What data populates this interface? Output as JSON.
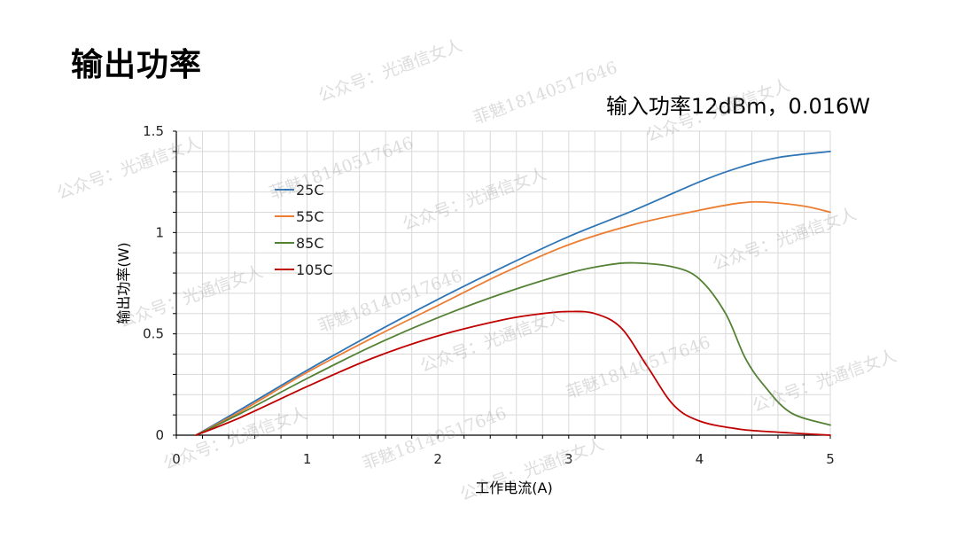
{
  "page": {
    "title": "输出功率",
    "input_note": "输入功率12dBm，0.016W",
    "watermark_account": "公众号：光通信女人",
    "watermark_phone": "菲魅18140517646"
  },
  "colors": {
    "grid": "#d9d9d9",
    "axis": "#000000",
    "c25": "#2e75b6",
    "c55": "#ed7d31",
    "c85": "#548235",
    "c105": "#c00000"
  },
  "chart_data": {
    "type": "line",
    "title": "",
    "xlabel": "工作电流(A)",
    "ylabel": "输出功率(W)",
    "xlim": [
      0,
      5
    ],
    "ylim": [
      0,
      1.5
    ],
    "xticks": [
      "0",
      "1",
      "2",
      "3",
      "4",
      "5"
    ],
    "yticks": [
      "0",
      "0.5",
      "1",
      "1.5"
    ],
    "grid": true,
    "legend_position": "top-left",
    "series": [
      {
        "name": "25C",
        "color": "#2e75b6",
        "x": [
          0.15,
          0.5,
          1.0,
          1.5,
          2.0,
          2.5,
          3.0,
          3.5,
          4.0,
          4.3,
          4.6,
          5.0
        ],
        "y": [
          0.0,
          0.13,
          0.32,
          0.5,
          0.67,
          0.83,
          0.98,
          1.11,
          1.25,
          1.32,
          1.37,
          1.4
        ]
      },
      {
        "name": "55C",
        "color": "#ed7d31",
        "x": [
          0.15,
          0.5,
          1.0,
          1.5,
          2.0,
          2.5,
          3.0,
          3.5,
          4.0,
          4.3,
          4.5,
          4.8,
          5.0
        ],
        "y": [
          0.0,
          0.12,
          0.31,
          0.48,
          0.64,
          0.8,
          0.94,
          1.04,
          1.11,
          1.145,
          1.15,
          1.13,
          1.1
        ]
      },
      {
        "name": "85C",
        "color": "#548235",
        "x": [
          0.15,
          0.5,
          1.0,
          1.5,
          2.0,
          2.5,
          3.0,
          3.3,
          3.5,
          3.8,
          4.0,
          4.2,
          4.35,
          4.5,
          4.7,
          5.0
        ],
        "y": [
          0.0,
          0.11,
          0.28,
          0.44,
          0.58,
          0.7,
          0.8,
          0.84,
          0.85,
          0.83,
          0.77,
          0.6,
          0.38,
          0.24,
          0.11,
          0.05
        ]
      },
      {
        "name": "105C",
        "color": "#c00000",
        "x": [
          0.15,
          0.5,
          1.0,
          1.5,
          2.0,
          2.5,
          2.8,
          3.0,
          3.2,
          3.4,
          3.6,
          3.8,
          4.0,
          4.3,
          4.6,
          5.0
        ],
        "y": [
          0.0,
          0.09,
          0.24,
          0.38,
          0.49,
          0.57,
          0.6,
          0.61,
          0.6,
          0.53,
          0.34,
          0.15,
          0.07,
          0.03,
          0.015,
          0.0
        ]
      }
    ]
  }
}
